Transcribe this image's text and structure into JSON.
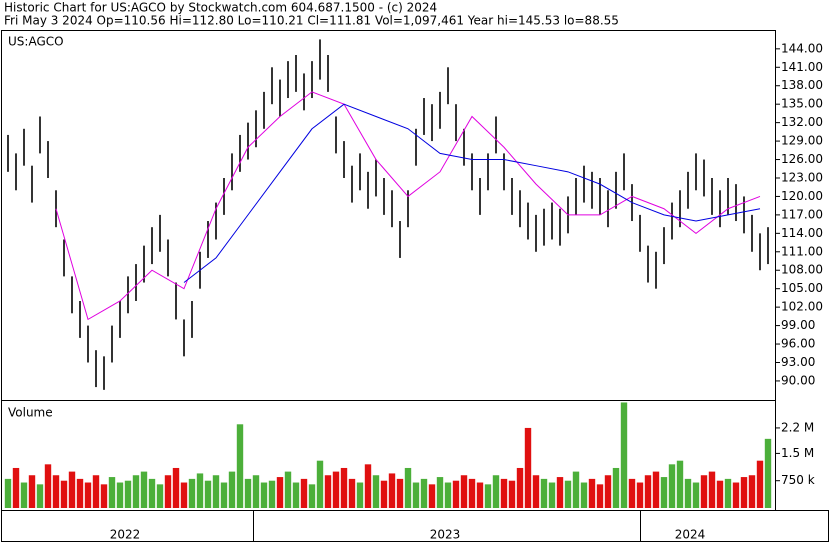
{
  "chart_data": {
    "type": "price-volume",
    "title": "Historic Chart for US:AGCO by Stockwatch.com 604.687.1500 - (c) 2024",
    "subtitle": "Fri May  3 2024  Op=110.56  Hi=112.80  Lo=110.21  Cl=111.81  Vol=1,097,461  Year hi=145.53  lo=88.55",
    "symbol": "US:AGCO",
    "volume_title": "Volume",
    "years": [
      "2022",
      "2023",
      "2024"
    ],
    "bar_color": "#000000",
    "high": [
      130,
      127,
      131,
      125,
      133,
      129,
      121,
      113,
      107,
      103,
      99,
      95,
      94,
      99,
      103,
      107,
      109,
      112,
      115,
      117,
      113,
      106,
      100,
      103,
      111,
      116,
      119,
      123,
      127,
      130,
      132,
      134,
      137,
      141,
      139,
      142,
      143,
      140,
      142,
      145.53,
      143,
      133,
      129,
      125,
      127,
      124,
      126,
      123,
      121,
      116,
      121,
      131,
      136,
      135,
      137,
      141,
      135,
      131,
      127,
      123,
      127,
      133,
      127,
      123,
      121,
      119,
      117,
      118,
      119,
      118,
      120,
      123,
      125,
      124,
      123,
      121,
      124,
      127,
      122,
      117,
      112,
      111,
      115,
      119,
      121,
      124,
      127,
      126,
      123,
      121,
      123,
      122,
      120,
      117,
      114,
      115
    ],
    "low": [
      124,
      121,
      125,
      119,
      127,
      123,
      115,
      107,
      101,
      97,
      93,
      89,
      88.55,
      93,
      97,
      101,
      103,
      106,
      109,
      111,
      107,
      100,
      94,
      97,
      105,
      110,
      113,
      117,
      121,
      124,
      126,
      128,
      131,
      135,
      133,
      136,
      137,
      134,
      136,
      139,
      137,
      127,
      123,
      119,
      121,
      118,
      120,
      117,
      115,
      110,
      115,
      125,
      130,
      129,
      131,
      135,
      129,
      125,
      121,
      117,
      121,
      127,
      121,
      117,
      115,
      113,
      111,
      112,
      113,
      112,
      114,
      117,
      119,
      118,
      117,
      115,
      118,
      121,
      116,
      111,
      106,
      105,
      109,
      113,
      115,
      118,
      121,
      120,
      117,
      115,
      117,
      116,
      114,
      111,
      108,
      109
    ],
    "series": [
      {
        "name": "MA short",
        "color": "#e000e0",
        "values": [
          null,
          118,
          100,
          103,
          108,
          105,
          118,
          128,
          133,
          137,
          135,
          126,
          120,
          124,
          133,
          128,
          122,
          117,
          117,
          120,
          118,
          114,
          118,
          120
        ]
      },
      {
        "name": "MA long",
        "color": "#0000e0",
        "values": [
          null,
          null,
          null,
          null,
          null,
          106,
          110,
          117,
          124,
          131,
          135,
          133,
          131,
          127,
          126,
          126,
          125,
          124,
          122,
          119,
          117,
          116,
          117,
          118
        ]
      }
    ],
    "ylim": [
      86.9,
      146.9
    ],
    "yticks": [
      {
        "value": 90,
        "label": "90.00"
      },
      {
        "value": 93,
        "label": "93.00"
      },
      {
        "value": 96,
        "label": "96.00"
      },
      {
        "value": 99,
        "label": "99.00"
      },
      {
        "value": 102,
        "label": "102.00"
      },
      {
        "value": 105,
        "label": "105.00"
      },
      {
        "value": 108,
        "label": "108.00"
      },
      {
        "value": 111,
        "label": "111.00"
      },
      {
        "value": 114,
        "label": "114.00"
      },
      {
        "value": 117,
        "label": "117.00"
      },
      {
        "value": 120,
        "label": "120.00"
      },
      {
        "value": 123,
        "label": "123.00"
      },
      {
        "value": 126,
        "label": "126.00"
      },
      {
        "value": 129,
        "label": "129.00"
      },
      {
        "value": 132,
        "label": "132.00"
      },
      {
        "value": 135,
        "label": "135.00"
      },
      {
        "value": 138,
        "label": "138.00"
      },
      {
        "value": 141,
        "label": "141.00"
      },
      {
        "value": 144,
        "label": "144.00"
      }
    ],
    "volume": [
      800000,
      1100000,
      700000,
      900000,
      650000,
      1200000,
      900000,
      750000,
      1000000,
      800000,
      700000,
      900000,
      650000,
      850000,
      700000,
      750000,
      900000,
      1000000,
      800000,
      650000,
      900000,
      1100000,
      700000,
      800000,
      950000,
      750000,
      900000,
      700000,
      1000000,
      2300000,
      800000,
      900000,
      700000,
      750000,
      850000,
      1000000,
      700000,
      800000,
      650000,
      1300000,
      900000,
      1000000,
      1100000,
      800000,
      700000,
      1200000,
      900000,
      750000,
      950000,
      800000,
      1100000,
      700000,
      800000,
      650000,
      850000,
      700000,
      750000,
      900000,
      800000,
      700000,
      650000,
      900000,
      800000,
      750000,
      1100000,
      2200000,
      900000,
      800000,
      700000,
      850000,
      750000,
      1000000,
      700000,
      800000,
      650000,
      900000,
      1100000,
      2900000,
      800000,
      700000,
      900000,
      1000000,
      850000,
      1200000,
      1300000,
      800000,
      700000,
      900000,
      1000000,
      750000,
      800000,
      700000,
      850000,
      900000,
      1300000,
      1900000
    ],
    "up_color": "#4caf3a",
    "down_color": "#e01010",
    "volume_ylim": [
      0,
      2940000
    ],
    "volume_ticks": [
      {
        "value": 750000,
        "label": "750 k"
      },
      {
        "value": 1500000,
        "label": "1.5 M"
      },
      {
        "value": 2200000,
        "label": "2.2 M"
      }
    ]
  }
}
